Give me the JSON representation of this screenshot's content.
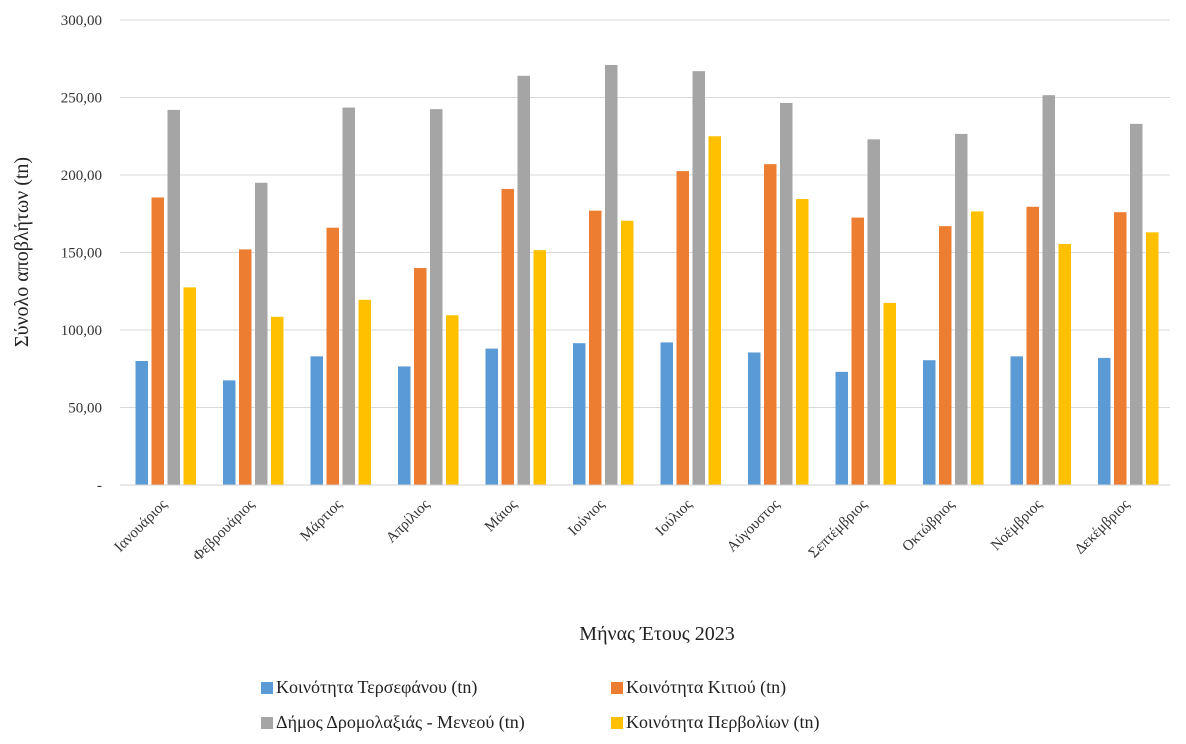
{
  "chart_data": {
    "type": "bar",
    "xlabel": "Μήνας Έτους 2023",
    "ylabel": "Σύνολο αποβλήτων (tn)",
    "ylim": [
      0,
      300
    ],
    "yticks": [
      {
        "value": 0,
        "label": "-"
      },
      {
        "value": 50,
        "label": "50,00"
      },
      {
        "value": 100,
        "label": "100,00"
      },
      {
        "value": 150,
        "label": "150,00"
      },
      {
        "value": 200,
        "label": "200,00"
      },
      {
        "value": 250,
        "label": "250,00"
      },
      {
        "value": 300,
        "label": "300,00"
      }
    ],
    "grid": "horizontal",
    "legend_position": "bottom",
    "categories": [
      "Ιανουάριος",
      "Φεβρουάριος",
      "Μάρτιος",
      "Απρίλιος",
      "Μάιος",
      "Ιούνιος",
      "Ιούλιος",
      "Αύγουστος",
      "Σεπτέμβριος",
      "Οκτώβριος",
      "Νοέμβριος",
      "Δεκέμβριος"
    ],
    "series": [
      {
        "name": "Κοινότητα Τερσεφάνου (tn)",
        "color": "#5B9BD5",
        "values": [
          80,
          67.5,
          83,
          76.5,
          88,
          91.5,
          92,
          85.5,
          73,
          80.5,
          83,
          82
        ]
      },
      {
        "name": "Κοινότητα Κιτιού (tn)",
        "color": "#ED7D31",
        "values": [
          185.5,
          152,
          166,
          140,
          191,
          177,
          202.5,
          207,
          172.5,
          167,
          179.5,
          176
        ]
      },
      {
        "name": "Δήμος Δρομολαξιάς - Μενεού (tn)",
        "color": "#A5A5A5",
        "values": [
          242,
          195,
          243.5,
          242.5,
          264,
          271,
          267,
          246.5,
          223,
          226.5,
          251.5,
          233
        ]
      },
      {
        "name": "Κοινότητα Περβολίων (tn)",
        "color": "#FFC000",
        "values": [
          127.5,
          108.5,
          119.5,
          109.5,
          151.5,
          170.5,
          225,
          184.5,
          117.5,
          176.5,
          155.5,
          163
        ]
      }
    ]
  }
}
